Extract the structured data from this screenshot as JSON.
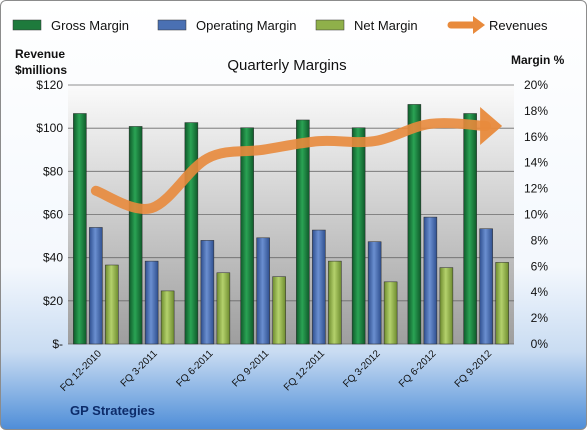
{
  "chart_data": {
    "type": "bar",
    "title": "Quarterly Margins",
    "source": "GP Strategies",
    "left_axis": {
      "label_lines": [
        "Revenue",
        "$millions"
      ],
      "ticks": [
        "$-",
        "$20",
        "$40",
        "$60",
        "$80",
        "$100",
        "$120"
      ],
      "range": [
        0,
        120
      ]
    },
    "right_axis": {
      "label": "Margin %",
      "ticks": [
        "0%",
        "2%",
        "4%",
        "6%",
        "8%",
        "10%",
        "12%",
        "14%",
        "16%",
        "18%",
        "20%"
      ],
      "range": [
        0,
        20
      ]
    },
    "categories": [
      "FQ 12-2010",
      "FQ 3-2011",
      "FQ 6-2011",
      "FQ 9-2011",
      "FQ 12-2011",
      "FQ 3-2012",
      "FQ 6-2012",
      "FQ 9-2012"
    ],
    "series": [
      {
        "name": "Gross Margin",
        "axis": "right",
        "kind": "bar",
        "color": "#1e7a3c",
        "values": [
          17.8,
          16.8,
          17.1,
          16.7,
          17.3,
          16.7,
          18.5,
          17.8
        ]
      },
      {
        "name": "Operating Margin",
        "axis": "right",
        "kind": "bar",
        "color": "#4a70b3",
        "values": [
          9.0,
          6.4,
          8.0,
          8.2,
          8.8,
          7.9,
          9.8,
          8.9
        ]
      },
      {
        "name": "Net Margin",
        "axis": "right",
        "kind": "bar",
        "color": "#8fb04a",
        "values": [
          6.1,
          4.1,
          5.5,
          5.2,
          6.4,
          4.8,
          5.9,
          6.3
        ]
      },
      {
        "name": "Revenues",
        "axis": "left",
        "kind": "line",
        "color": "#e88a3c",
        "values": [
          71,
          63,
          86,
          90,
          94,
          94,
          102,
          101
        ]
      }
    ],
    "legend": {
      "placement": "top"
    },
    "grid": true
  }
}
